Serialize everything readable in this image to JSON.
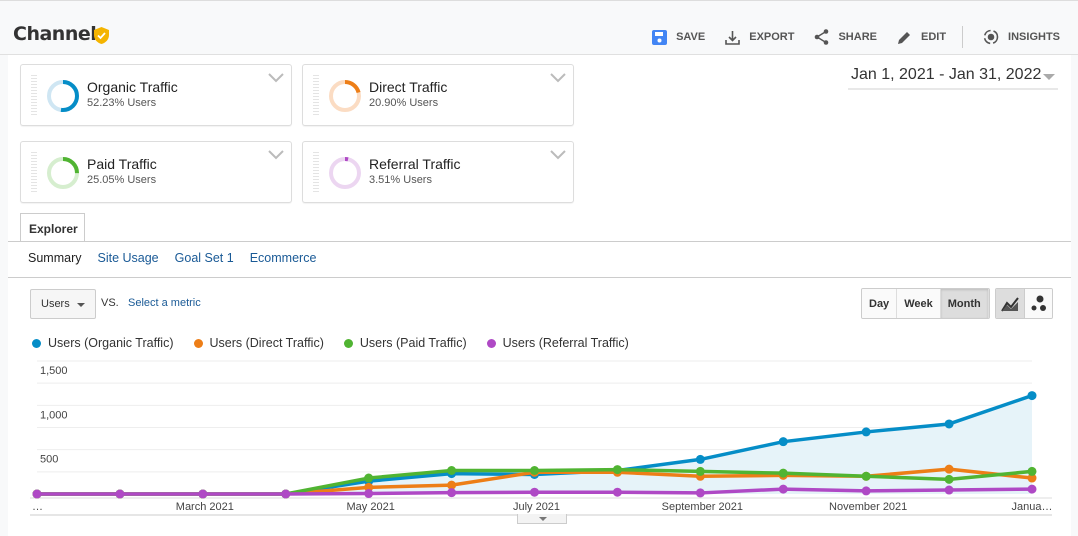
{
  "header": {
    "title": "Channels",
    "actions": [
      {
        "label": "SAVE",
        "icon": "save-icon"
      },
      {
        "label": "EXPORT",
        "icon": "download-icon"
      },
      {
        "label": "SHARE",
        "icon": "share-icon"
      },
      {
        "label": "EDIT",
        "icon": "pencil-icon"
      },
      {
        "label": "INSIGHTS",
        "icon": "insights-icon"
      }
    ]
  },
  "segments": [
    {
      "name": "Organic Traffic",
      "value": "52.23% Users",
      "pct": 52.23,
      "color": "#058dc7",
      "light": "#cfe6f3"
    },
    {
      "name": "Direct Traffic",
      "value": "20.90% Users",
      "pct": 20.9,
      "color": "#ed7e17",
      "light": "#fbdcc3"
    },
    {
      "name": "Paid Traffic",
      "value": "25.05% Users",
      "pct": 25.05,
      "color": "#50b432",
      "light": "#d6eecf"
    },
    {
      "name": "Referral Traffic",
      "value": "3.51% Users",
      "pct": 3.51,
      "color": "#af49c5",
      "light": "#ecd6f1"
    }
  ],
  "date_range": "Jan 1, 2021 - Jan 31, 2022",
  "explorer": {
    "tab": "Explorer",
    "subnav": [
      "Summary",
      "Site Usage",
      "Goal Set 1",
      "Ecommerce"
    ]
  },
  "controls": {
    "metric": "Users",
    "vs": "VS.",
    "select_metric": "Select a metric",
    "granularity": [
      "Day",
      "Week",
      "Month"
    ],
    "selected_granularity": "Month"
  },
  "chart_data": {
    "type": "line",
    "x": [
      "Jan 2021",
      "Feb 2021",
      "Mar 2021",
      "Apr 2021",
      "May 2021",
      "Jun 2021",
      "Jul 2021",
      "Aug 2021",
      "Sep 2021",
      "Oct 2021",
      "Nov 2021",
      "Dec 2021",
      "Jan 2022"
    ],
    "x_tick_labels": [
      "…",
      "March 2021",
      "May 2021",
      "July 2021",
      "September 2021",
      "November 2021",
      "Janua…"
    ],
    "x_tick_index": [
      0,
      2,
      4,
      6,
      8,
      10,
      12
    ],
    "y_ticks": [
      "1,500",
      "1,000",
      "500"
    ],
    "y_tick_values": [
      1500,
      1000,
      500
    ],
    "ylim": [
      0,
      1500
    ],
    "series": [
      {
        "name": "Users (Organic Traffic)",
        "color": "#058dc7",
        "values": [
          0,
          0,
          0,
          0,
          145,
          230,
          220,
          265,
          390,
          590,
          700,
          790,
          1110
        ]
      },
      {
        "name": "Users (Direct Traffic)",
        "color": "#ed7e17",
        "values": [
          0,
          0,
          0,
          0,
          75,
          100,
          245,
          245,
          200,
          210,
          200,
          280,
          180
        ]
      },
      {
        "name": "Users (Paid Traffic)",
        "color": "#50b432",
        "values": [
          0,
          0,
          0,
          0,
          180,
          265,
          265,
          275,
          255,
          235,
          200,
          165,
          255
        ]
      },
      {
        "name": "Users (Referral Traffic)",
        "color": "#af49c5",
        "values": [
          0,
          0,
          0,
          0,
          5,
          15,
          20,
          20,
          12,
          55,
          35,
          45,
          55
        ]
      }
    ]
  }
}
